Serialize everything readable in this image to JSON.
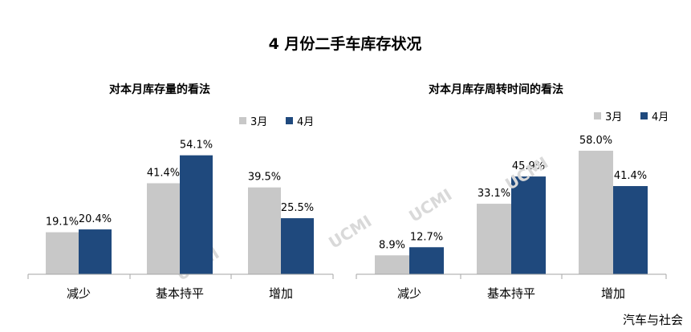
{
  "main_title": "4 月份二手车库存状况",
  "watermark": "UCMI",
  "footer_brand": "汽车与社会",
  "chart_data": [
    {
      "type": "bar",
      "title": "对本月库存量的看法",
      "categories": [
        "减少",
        "基本持平",
        "增加"
      ],
      "series": [
        {
          "name": "3月",
          "values": [
            19.1,
            41.4,
            39.5
          ],
          "labels": [
            "19.1%",
            "41.4%",
            "39.5%"
          ],
          "color": "#c8c8c8"
        },
        {
          "name": "4月",
          "values": [
            20.4,
            54.1,
            25.5
          ],
          "labels": [
            "20.4%",
            "54.1%",
            "25.5%"
          ],
          "color": "#1f497d"
        }
      ],
      "ylim": [
        0,
        62
      ],
      "grid": false,
      "legend": "top-right"
    },
    {
      "type": "bar",
      "title": "对本月库存周转时间的看法",
      "categories": [
        "减少",
        "基本持平",
        "增加"
      ],
      "series": [
        {
          "name": "3月",
          "values": [
            8.9,
            33.1,
            58.0
          ],
          "labels": [
            "8.9%",
            "33.1%",
            "58.0%"
          ],
          "color": "#c8c8c8"
        },
        {
          "name": "4月",
          "values": [
            12.7,
            45.9,
            41.4
          ],
          "labels": [
            "12.7%",
            "45.9%",
            "41.4%"
          ],
          "color": "#1f497d"
        }
      ],
      "ylim": [
        0,
        64
      ],
      "grid": false,
      "legend": "top-right"
    }
  ]
}
